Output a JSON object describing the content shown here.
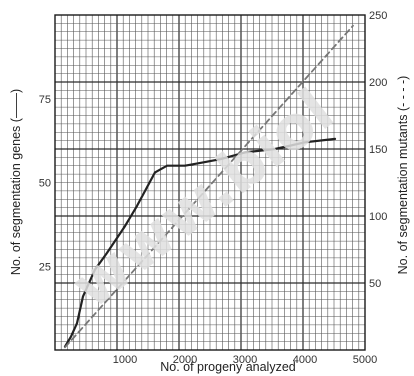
{
  "chart_data": {
    "type": "line",
    "xlabel": "No. of progeny analyzed",
    "ylabel_left": "No. of segmentation genes (——)",
    "ylabel_right": "No. of segmentation mutants (- - - -)",
    "xlim": [
      0,
      5000
    ],
    "ylim_left": [
      0,
      100
    ],
    "ylim_right": [
      0,
      250
    ],
    "x_ticks": [
      1000,
      2000,
      3000,
      4000,
      5000
    ],
    "y_left_ticks": [
      25,
      50,
      75
    ],
    "y_right_ticks": [
      50,
      100,
      150,
      200,
      250
    ],
    "grid": true,
    "series": [
      {
        "axis": "left",
        "style": "solid",
        "color": "#222222",
        "x": [
          0,
          100,
          200,
          300,
          500,
          700,
          1000,
          1200,
          1500,
          1700,
          2000,
          2300,
          2600,
          3000,
          3500,
          4000,
          4500
        ],
        "y": [
          1,
          4,
          8,
          16,
          24,
          29,
          37,
          43,
          53,
          55,
          55,
          56,
          57,
          59,
          60,
          62,
          63
        ]
      },
      {
        "axis": "right",
        "style": "dashed",
        "color": "#777777",
        "x": [
          0,
          500,
          1000,
          2000,
          3000,
          4000,
          4800
        ],
        "y": [
          2,
          27,
          52,
          102,
          152,
          202,
          242
        ]
      }
    ]
  },
  "watermark": "www.biol"
}
